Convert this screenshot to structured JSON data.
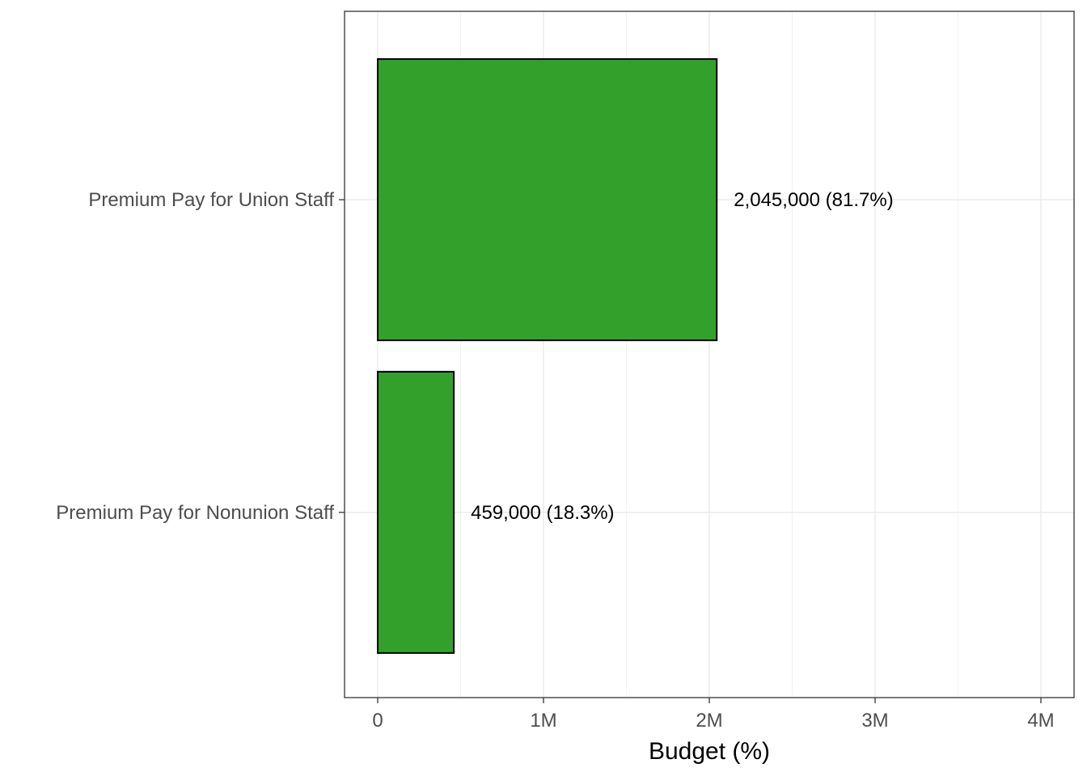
{
  "chart_data": {
    "type": "bar",
    "orientation": "horizontal",
    "categories": [
      "Premium Pay for Union Staff",
      "Premium Pay for Nonunion Staff"
    ],
    "values": [
      2045000,
      459000
    ],
    "data_labels": [
      "2,045,000 (81.7%)",
      "459,000 (18.3%)"
    ],
    "xlabel": "Budget (%)",
    "ylabel": "",
    "title": "",
    "xlim": [
      -200000,
      4200000
    ],
    "x_ticks": [
      0,
      1000000,
      2000000,
      3000000,
      4000000
    ],
    "x_tick_labels": [
      "0",
      "1M",
      "2M",
      "3M",
      "4M"
    ],
    "bar_color": "#33a02c",
    "grid": true,
    "legend": "none"
  }
}
